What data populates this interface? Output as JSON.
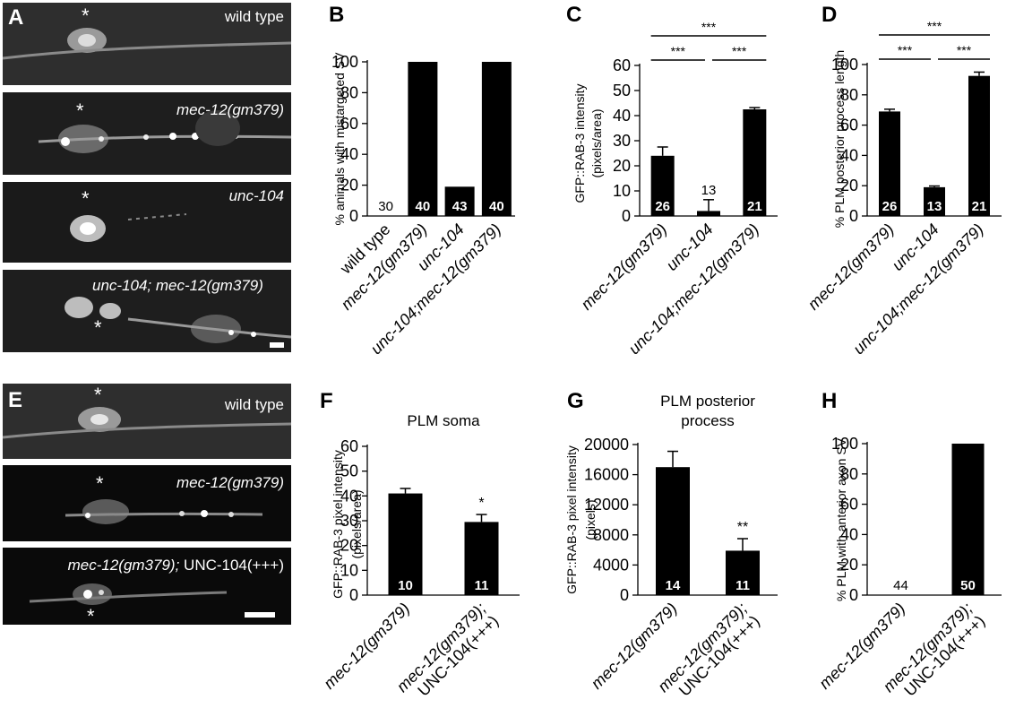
{
  "micrographs": {
    "A": {
      "letter": "A",
      "panels": [
        {
          "label": "wild type",
          "star": "*"
        },
        {
          "label": "mec-12(gm379)",
          "star": "*"
        },
        {
          "label": "unc-104",
          "star": "*"
        },
        {
          "label": "unc-104; mec-12(gm379)",
          "star": "*"
        }
      ]
    },
    "E": {
      "letter": "E",
      "panels": [
        {
          "label": "wild type",
          "star": "*"
        },
        {
          "label": "mec-12(gm379)",
          "star": "*"
        },
        {
          "label_italic": "mec-12(gm379);",
          "label_plain": " UNC-104(+++)",
          "star": "*"
        }
      ]
    }
  },
  "chart_data": [
    {
      "panel": "B",
      "type": "bar",
      "categories": [
        "wild type",
        "mec-12(gm379)",
        "unc-104",
        "unc-104;mec-12(gm379)"
      ],
      "values": [
        0,
        100,
        19,
        100
      ],
      "n_labels": [
        "30",
        "40",
        "43",
        "40"
      ],
      "ylabel": "% animals with mistargeted SV",
      "title": "",
      "ylim": [
        0,
        100
      ],
      "yticks": [
        0,
        20,
        40,
        60,
        80,
        100
      ],
      "errors": [],
      "significance": []
    },
    {
      "panel": "C",
      "type": "bar",
      "categories": [
        "mec-12(gm379)",
        "unc-104",
        "unc-104;mec-12(gm379)"
      ],
      "values": [
        24,
        2,
        42.5
      ],
      "errors": [
        3.5,
        4.5,
        0.7
      ],
      "n_labels": [
        "26",
        "13",
        "21"
      ],
      "ylabel": "GFP::RAB-3 intensity",
      "ylabel2": "(pixels/area)",
      "title": "",
      "ylim": [
        0,
        60
      ],
      "yticks": [
        0,
        10,
        20,
        30,
        40,
        50,
        60
      ],
      "significance": [
        {
          "from": 0,
          "to": 2,
          "label": "***",
          "level": 1
        },
        {
          "from": 0,
          "to": 1,
          "label": "***",
          "level": 0
        },
        {
          "from": 1,
          "to": 2,
          "label": "***",
          "level": 0
        }
      ]
    },
    {
      "panel": "D",
      "type": "bar",
      "categories": [
        "mec-12(gm379)",
        "unc-104",
        "unc-104;mec-12(gm379)"
      ],
      "values": [
        69,
        19,
        92.5
      ],
      "errors": [
        1.5,
        0.8,
        2.5
      ],
      "n_labels": [
        "26",
        "13",
        "21"
      ],
      "ylabel": "% PLM posterior process length",
      "title": "",
      "ylim": [
        0,
        100
      ],
      "yticks": [
        0,
        20,
        40,
        60,
        80,
        100
      ],
      "significance": [
        {
          "from": 0,
          "to": 2,
          "label": "***",
          "level": 1
        },
        {
          "from": 0,
          "to": 1,
          "label": "***",
          "level": 0
        },
        {
          "from": 1,
          "to": 2,
          "label": "***",
          "level": 0
        }
      ]
    },
    {
      "panel": "F",
      "type": "bar",
      "categories": [
        "mec-12(gm379)",
        "mec-12(gm379);|UNC-104(+++)"
      ],
      "values": [
        41,
        29.5
      ],
      "errors": [
        2,
        3
      ],
      "n_labels": [
        "10",
        "11"
      ],
      "bar_marks": [
        "",
        "*"
      ],
      "ylabel": "GFP::RAB-3 pixel intensity",
      "ylabel2": "(pixels/area)",
      "title": "PLM soma",
      "title2": "",
      "ylim": [
        0,
        60
      ],
      "yticks": [
        0,
        10,
        20,
        30,
        40,
        50,
        60
      ],
      "significance": []
    },
    {
      "panel": "G",
      "type": "bar",
      "categories": [
        "mec-12(gm379)",
        "mec-12(gm379);|UNC-104(+++)"
      ],
      "values": [
        17000,
        5900
      ],
      "errors": [
        2100,
        1600
      ],
      "n_labels": [
        "14",
        "11"
      ],
      "bar_marks": [
        "",
        "**"
      ],
      "ylabel": "GFP::RAB-3 pixel intensity",
      "ylabel2": "(pixels)",
      "title": "PLM posterior",
      "title2": "process",
      "ylim": [
        0,
        20000
      ],
      "yticks": [
        0,
        4000,
        8000,
        12000,
        16000,
        20000
      ],
      "significance": []
    },
    {
      "panel": "H",
      "type": "bar",
      "categories": [
        "mec-12(gm379)",
        "mec-12(gm379);|UNC-104(+++)"
      ],
      "values": [
        0,
        100
      ],
      "errors": [],
      "n_labels": [
        "44",
        "50"
      ],
      "ylabel": "% PLM with anterior axon SV",
      "title": "",
      "ylim": [
        0,
        100
      ],
      "yticks": [
        0,
        20,
        40,
        60,
        80,
        100
      ],
      "significance": []
    }
  ]
}
